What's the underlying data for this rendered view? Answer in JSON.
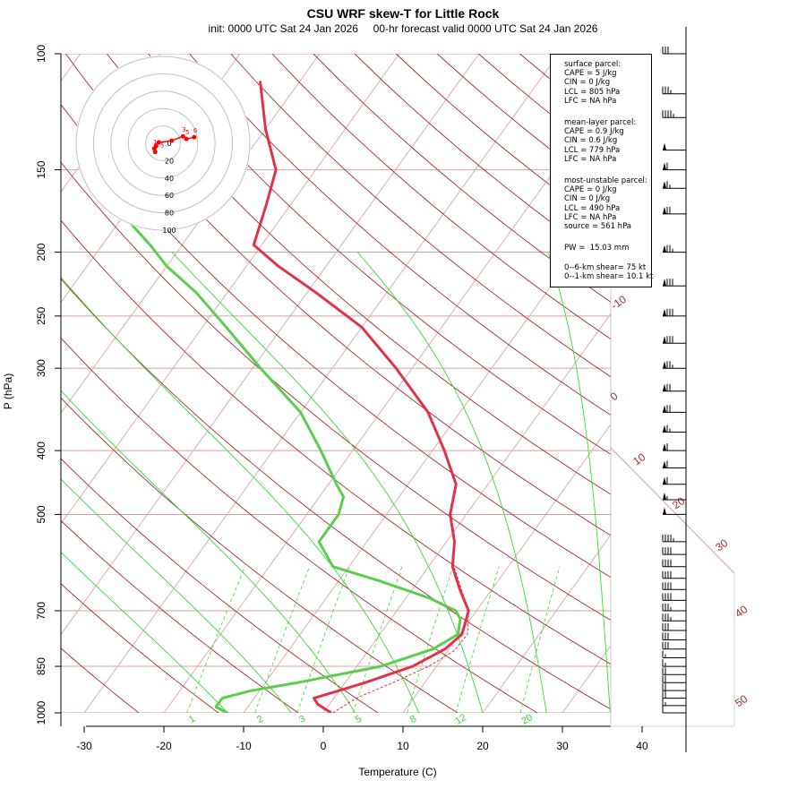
{
  "title": "CSU WRF skew-T for Little Rock",
  "subtitle": "init: 0000 UTC Sat 24 Jan 2026     00-hr forecast valid 0000 UTC Sat 24 Jan 2026",
  "colors": {
    "temperature": "#e0334a",
    "dewpoint": "#5ccd4e",
    "parcel": "#e0334a",
    "isotherm": "#d8b0b0",
    "dry_adiabat": "#a52a2a",
    "moist_adiabat": "#33dd33",
    "mixing_ratio": "#33dd33",
    "isobar": "#d8a0a0",
    "hodograph": "#ff0000",
    "hodo_ring": "#c0c0c0"
  },
  "info": {
    "surface": [
      "surface parcel:",
      "CAPE = 5 J/kg",
      "CIN = 0 J/kg",
      "LCL = 805 hPa",
      "LFC = NA hPa"
    ],
    "mean_layer": [
      "mean-layer parcel:",
      "CAPE = 0.9 J/kg",
      "CIN = 0.6 J/kg",
      "LCL = 779 hPa",
      "LFC = NA hPa"
    ],
    "most_unstable": [
      "most-unstable parcel:",
      "CAPE = 0 J/kg",
      "CIN = 0 J/kg",
      "LCL = 490 hPa",
      "LFC = NA hPa",
      "source = 561 hPa"
    ],
    "pw": [
      "PW =  15.03 mm"
    ],
    "shear": [
      "0--6-km shear= 75 kt",
      "0--1-km shear= 10.1 kt"
    ]
  },
  "chart_data": {
    "type": "line",
    "title": "CSU WRF skew-T for Little Rock",
    "subtitle": "init: 0000 UTC Sat 24 Jan 2026     00-hr forecast valid 0000 UTC Sat 24 Jan 2026",
    "xlabel": "Temperature (C)",
    "ylabel": "P (hPa)",
    "x_ticks": [
      -30,
      -20,
      -10,
      0,
      10,
      20,
      30,
      40
    ],
    "y_ticks": [
      100,
      150,
      200,
      250,
      300,
      400,
      500,
      700,
      850,
      1000
    ],
    "xlim": [
      -33,
      44
    ],
    "ylim": [
      1000,
      100
    ],
    "y_scale": "skew-T log-p",
    "isotherm_labels": [
      "-10",
      "0",
      "10",
      "20",
      "30",
      "40",
      "50"
    ],
    "mixing_ratio_labels": [
      "1",
      "2",
      "3",
      "5",
      "8",
      "12",
      "20"
    ],
    "hodograph_ring_labels": [
      "0",
      "20",
      "40",
      "60",
      "80",
      "100"
    ],
    "hodograph_height_labels": [
      "0.5",
      "1",
      "3",
      "5",
      "6"
    ],
    "series": [
      {
        "name": "temperature",
        "pressure": [
          1000,
          970,
          950,
          925,
          900,
          850,
          800,
          760,
          700,
          650,
          600,
          550,
          500,
          450,
          400,
          350,
          300,
          260,
          230,
          210,
          195,
          170,
          150,
          130,
          110
        ],
        "temp": [
          1,
          -1.5,
          -2.5,
          0,
          2.5,
          7,
          9.5,
          10.3,
          9,
          6,
          3,
          1,
          -2,
          -4,
          -8.5,
          -14,
          -22,
          -30,
          -39,
          -46,
          -51,
          -53,
          -55,
          -60,
          -65
        ]
      },
      {
        "name": "dewpoint",
        "pressure": [
          1000,
          980,
          950,
          925,
          900,
          850,
          800,
          760,
          720,
          700,
          670,
          630,
          600,
          550,
          500,
          470,
          450,
          400,
          350,
          300,
          260,
          230,
          210,
          195,
          170
        ],
        "dew": [
          -12,
          -14,
          -14,
          -11,
          -6,
          3,
          8,
          9.8,
          8.7,
          7.4,
          3,
          -5,
          -12,
          -16,
          -16,
          -17,
          -19,
          -24,
          -30,
          -39,
          -47,
          -54,
          -60,
          -64,
          -72
        ]
      },
      {
        "name": "parcel",
        "pressure": [
          1000,
          950,
          900,
          850,
          805,
          760,
          700,
          650,
          600
        ],
        "temp": [
          1.2,
          2.8,
          6,
          9,
          10.8,
          11,
          9,
          6.2,
          3.2
        ]
      }
    ],
    "wind_barbs": [
      {
        "p": 1000,
        "spd": 10
      },
      {
        "p": 975,
        "spd": 15
      },
      {
        "p": 950,
        "spd": 20
      },
      {
        "p": 925,
        "spd": 20
      },
      {
        "p": 900,
        "spd": 20
      },
      {
        "p": 875,
        "spd": 20
      },
      {
        "p": 850,
        "spd": 15
      },
      {
        "p": 825,
        "spd": 15
      },
      {
        "p": 800,
        "spd": 30
      },
      {
        "p": 775,
        "spd": 30
      },
      {
        "p": 750,
        "spd": 30
      },
      {
        "p": 725,
        "spd": 35
      },
      {
        "p": 700,
        "spd": 35
      },
      {
        "p": 675,
        "spd": 40
      },
      {
        "p": 650,
        "spd": 40
      },
      {
        "p": 625,
        "spd": 40
      },
      {
        "p": 600,
        "spd": 40
      },
      {
        "p": 575,
        "spd": 40
      },
      {
        "p": 550,
        "spd": 45
      },
      {
        "p": 500,
        "spd": 50
      },
      {
        "p": 475,
        "spd": 55
      },
      {
        "p": 450,
        "spd": 60
      },
      {
        "p": 425,
        "spd": 60
      },
      {
        "p": 400,
        "spd": 60
      },
      {
        "p": 375,
        "spd": 65
      },
      {
        "p": 350,
        "spd": 70
      },
      {
        "p": 325,
        "spd": 70
      },
      {
        "p": 300,
        "spd": 75
      },
      {
        "p": 275,
        "spd": 80
      },
      {
        "p": 250,
        "spd": 80
      },
      {
        "p": 225,
        "spd": 80
      },
      {
        "p": 200,
        "spd": 75
      },
      {
        "p": 175,
        "spd": 70
      },
      {
        "p": 160,
        "spd": 65
      },
      {
        "p": 150,
        "spd": 60
      },
      {
        "p": 140,
        "spd": 50
      },
      {
        "p": 125,
        "spd": 45
      },
      {
        "p": 115,
        "spd": 35
      },
      {
        "p": 100,
        "spd": 30
      }
    ],
    "hodograph": {
      "u_kt": [
        -9,
        -10,
        -8,
        -5,
        10,
        23,
        27,
        36
      ],
      "v_kt": [
        -10,
        -6,
        -3,
        1,
        3,
        8,
        5,
        7
      ],
      "labels": [
        "0.5",
        "1",
        "",
        "",
        "",
        "3",
        "5",
        "6"
      ]
    }
  }
}
